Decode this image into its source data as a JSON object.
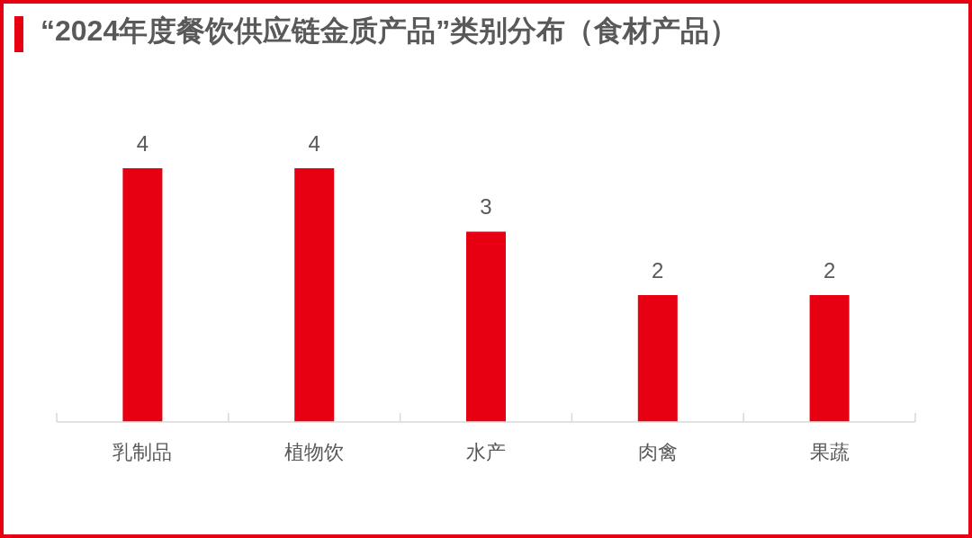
{
  "chart_data": {
    "type": "bar",
    "title": "“2024年度餐饮供应链金质产品”类别分布（食材产品）",
    "categories": [
      "乳制品",
      "植物饮",
      "水产",
      "肉禽",
      "果蔬"
    ],
    "values": [
      4,
      4,
      3,
      2,
      2
    ],
    "color": "#e60012",
    "data_labels": true
  }
}
